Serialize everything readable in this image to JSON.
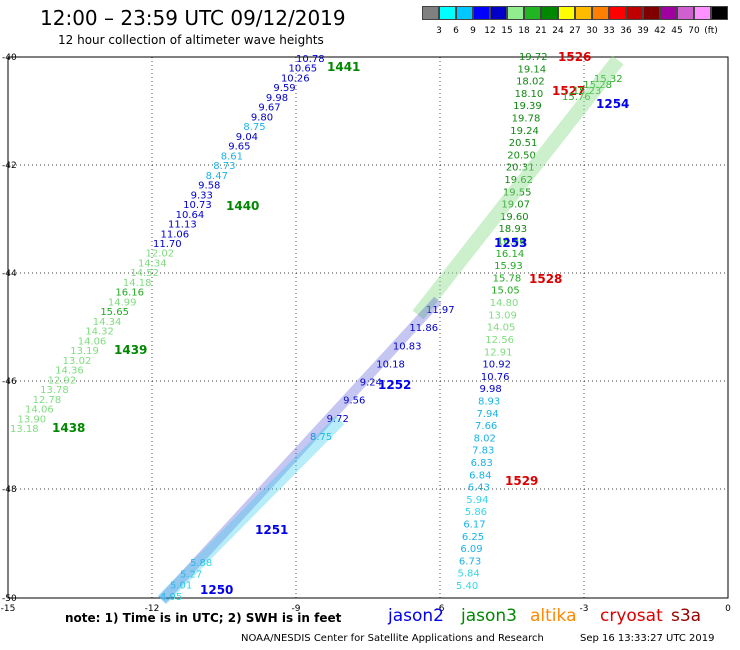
{
  "title": "12:00 – 23:59 UTC 09/12/2019",
  "subtitle": "12 hour collection of altimeter wave heights",
  "colorbar": {
    "swatches": [
      "#808080",
      "#00ffff",
      "#00c8ff",
      "#0000ff",
      "#0000c8",
      "#90ee90",
      "#22b522",
      "#008800",
      "#ffff00",
      "#ffbb00",
      "#ff8000",
      "#ff0000",
      "#c00000",
      "#800000",
      "#a000a0",
      "#d060d0",
      "#ff90ff",
      "#000000"
    ],
    "labels": [
      "3",
      "6",
      "9",
      "12",
      "15",
      "18",
      "21",
      "24",
      "27",
      "30",
      "33",
      "36",
      "39",
      "42",
      "45",
      "70",
      "(ft)"
    ]
  },
  "axes": {
    "x_ticks": [
      "-15",
      "-12",
      "-9",
      "-6",
      "-3",
      "0"
    ],
    "y_ticks": [
      "-40",
      "-42",
      "-44",
      "-46",
      "-48",
      "-50"
    ]
  },
  "tracks": [
    {
      "label": "1441",
      "color": "#008800",
      "values": [
        "10.78",
        "10.65",
        "10.26",
        "9.59",
        "9.98",
        "9.67",
        "9.80",
        "8.75",
        "9.04",
        "9.65",
        "8.61",
        "8.73",
        "8.47",
        "9.58",
        "9.33",
        "10.73",
        "10.64",
        "11.13",
        "11.06",
        "11.70",
        "12.02",
        "14.34",
        "14.52",
        "14.18",
        "16.16",
        "14.99",
        "15.65",
        "14.34",
        "14.32",
        "14.06",
        "13.19",
        "13.02",
        "14.36",
        "12.92",
        "13.78",
        "12.78",
        "14.06",
        "13.90",
        "13.18"
      ]
    },
    {
      "label": "1440",
      "color": "#008800"
    },
    {
      "label": "1439",
      "color": "#008800"
    },
    {
      "label": "1438",
      "color": "#008800"
    },
    {
      "label": "1526",
      "color": "#dd0000",
      "values": [
        "19.72",
        "19.14",
        "18.02",
        "18.10",
        "19.39",
        "19.78",
        "19.24",
        "20.51",
        "20.50",
        "20.31",
        "19.62",
        "19.55",
        "19.07",
        "19.60",
        "18.93",
        "16.56",
        "16.14",
        "15.93",
        "15.78",
        "15.05",
        "14.80",
        "13.09",
        "14.05",
        "12.56",
        "12.91",
        "10.92",
        "10.76",
        "9.98",
        "8.93",
        "7.94",
        "7.66",
        "8.02",
        "7.83",
        "6.83",
        "6.84",
        "6.43",
        "5.94",
        "5.86",
        "6.17",
        "6.25",
        "6.09",
        "6.73",
        "5.84",
        "5.40"
      ]
    },
    {
      "label": "1527",
      "color": "#dd0000"
    },
    {
      "label": "1528",
      "color": "#dd0000"
    },
    {
      "label": "1529",
      "color": "#dd0000"
    },
    {
      "label": "1254",
      "color": "#0000ee",
      "values": [
        "15.32",
        "15.28",
        "15.23",
        "15.76"
      ]
    },
    {
      "label": "1253",
      "color": "#0000ee"
    },
    {
      "label": "1252",
      "color": "#0000ee",
      "values": [
        "11.97",
        "11.86",
        "10.83",
        "10.18",
        "9.24",
        "9.56",
        "9.72",
        "8.75"
      ]
    },
    {
      "label": "1251",
      "color": "#0000ee"
    },
    {
      "label": "1250",
      "color": "#0000ee",
      "values": [
        "5.88",
        "5.27",
        "5.01",
        "4.95"
      ]
    }
  ],
  "note": "note: 1) Time is in UTC; 2) SWH is in feet",
  "legend": [
    {
      "name": "jason2",
      "color": "#0000ee"
    },
    {
      "name": "jason3",
      "color": "#008800"
    },
    {
      "name": "altika",
      "color": "#ff8800"
    },
    {
      "name": "cryosat",
      "color": "#dd0000"
    },
    {
      "name": "s3a",
      "color": "#990000"
    }
  ],
  "credit": "NOAA/NESDIS Center for Satellite Applications and Research",
  "timestamp": "Sep 16 13:33:27 UTC 2019"
}
